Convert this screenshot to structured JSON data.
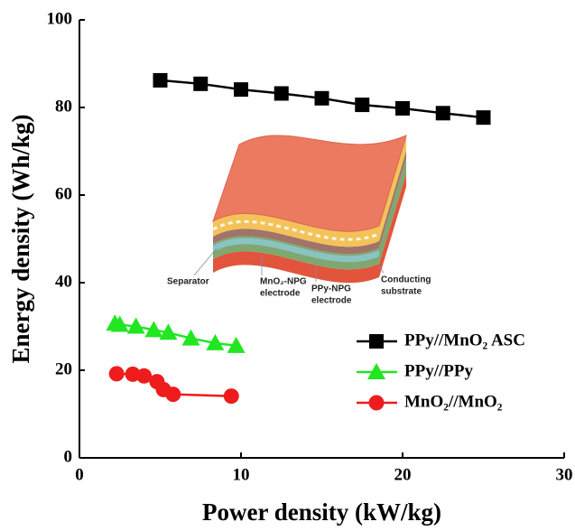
{
  "chart_data": {
    "type": "line",
    "x_label": "Power density (kW/kg)",
    "y_label": "Energy density (Wh/kg)",
    "xlim": [
      0,
      30
    ],
    "xticks": [
      0,
      10,
      20,
      30
    ],
    "ylim": [
      0,
      100
    ],
    "yticks": [
      0,
      20,
      40,
      60,
      80,
      100
    ],
    "legend": "lower right",
    "series": [
      {
        "name": "PPy//MnO₂ ASC",
        "color": "#000000",
        "marker": "square",
        "x": [
          5,
          7.5,
          10,
          12.5,
          15,
          17.5,
          20,
          22.5,
          25
        ],
        "values": [
          86.2,
          85.4,
          84.1,
          83.2,
          82.1,
          80.6,
          79.8,
          78.7,
          77.7
        ]
      },
      {
        "name": "PPy//PPy",
        "color": "#22e622",
        "marker": "triangle",
        "x": [
          2.2,
          2.5,
          3.5,
          4.6,
          5.5,
          6.9,
          8.4,
          9.7
        ],
        "values": [
          30.7,
          30.4,
          30,
          29.2,
          28.6,
          27.3,
          26.2,
          25.6
        ]
      },
      {
        "name": "MnO₂//MnO₂",
        "color": "#ee1c1c",
        "marker": "circle",
        "x": [
          2.3,
          3.3,
          4.0,
          4.8,
          5.2,
          5.8,
          9.4
        ],
        "values": [
          19.2,
          19.1,
          18.7,
          17.4,
          15.6,
          14.5,
          14.1
        ]
      }
    ],
    "inset_labels": [
      [
        "Separator"
      ],
      [
        "MnO₂-NPG",
        "electrode"
      ],
      [
        "PPy-NPG",
        "electrode"
      ],
      [
        "Conducting",
        "substrate"
      ]
    ]
  }
}
